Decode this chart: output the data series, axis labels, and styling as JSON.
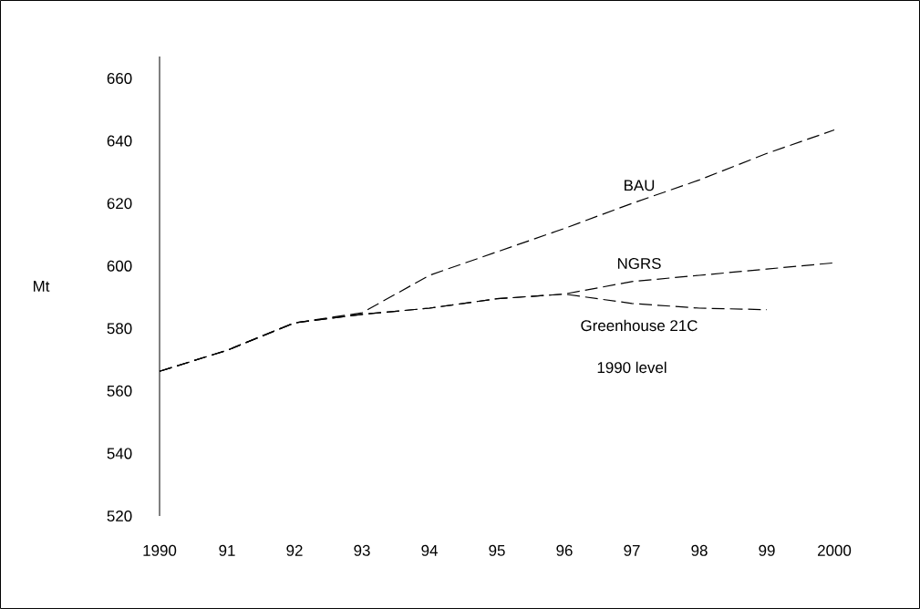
{
  "chart_data": {
    "type": "line",
    "ylabel": "Mt",
    "x": [
      1990,
      1991,
      1992,
      1993,
      1994,
      1995,
      1996,
      1997,
      1998,
      1999,
      2000
    ],
    "series": [
      {
        "name": "BAU",
        "color": "#000000",
        "values": [
          566.3,
          573,
          581.8,
          585,
          597,
          604.5,
          612,
          620,
          627.5,
          636,
          643.5
        ]
      },
      {
        "name": "NGRS",
        "color": "#000000",
        "values": [
          566.3,
          573,
          581.8,
          584.5,
          586.5,
          589.5,
          591,
          595,
          597,
          599,
          601
        ]
      },
      {
        "name": "Greenhouse 21C",
        "color": "#000000",
        "values": [
          566.3,
          573,
          581.8,
          584.5,
          586.5,
          589.5,
          591,
          588,
          586.5,
          586,
          null
        ]
      }
    ],
    "annotations": [
      "1990 level"
    ],
    "xlim": [
      1990,
      2000
    ],
    "ylim": [
      520,
      667
    ],
    "xticks": [
      1990,
      {
        "value": 1991,
        "label": "91"
      },
      {
        "value": 1992,
        "label": "92"
      },
      {
        "value": 1993,
        "label": "93"
      },
      {
        "value": 1994,
        "label": "94"
      },
      {
        "value": 1995,
        "label": "95"
      },
      {
        "value": 1996,
        "label": "96"
      },
      {
        "value": 1997,
        "label": "97"
      },
      {
        "value": 1998,
        "label": "98"
      },
      {
        "value": 1999,
        "label": "99"
      },
      2000
    ],
    "yticks": [
      520,
      540,
      560,
      580,
      600,
      620,
      640,
      660
    ],
    "marker": "none",
    "line_style": "dashed"
  }
}
